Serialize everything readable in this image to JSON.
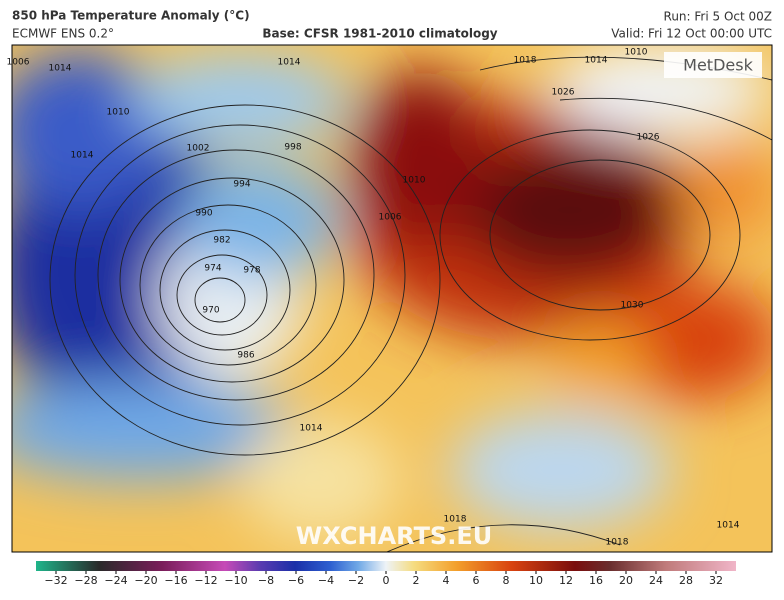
{
  "header": {
    "title": "850 hPa Temperature Anomaly (°C)",
    "model": "ECMWF ENS 0.2°",
    "base": "Base: CFSR 1981-2010 climatology",
    "run": "Run: Fri 5 Oct 00Z",
    "valid": "Valid: Fri 12 Oct 00:00 UTC"
  },
  "logo": "MetDesk",
  "watermark": "WXCHARTS.EU",
  "isobars": [
    1006,
    1014,
    1010,
    1014,
    1002,
    998,
    994,
    990,
    982,
    974,
    978,
    970,
    986,
    1014,
    1014,
    1018,
    1014,
    1010,
    1026,
    1026,
    1030,
    1006,
    1010,
    1018,
    1018,
    1014
  ],
  "colorbar": {
    "ticks": [
      {
        "value": -32,
        "label": "−32"
      },
      {
        "value": -28,
        "label": "−28"
      },
      {
        "value": -24,
        "label": "−24"
      },
      {
        "value": -20,
        "label": "−20"
      },
      {
        "value": -16,
        "label": "−16"
      },
      {
        "value": -12,
        "label": "−12"
      },
      {
        "value": -10,
        "label": "−10"
      },
      {
        "value": -8,
        "label": "−8"
      },
      {
        "value": -6,
        "label": "−6"
      },
      {
        "value": -4,
        "label": "−4"
      },
      {
        "value": -2,
        "label": "−2"
      },
      0,
      2,
      4,
      6,
      8,
      10,
      12,
      16,
      20,
      24,
      28,
      32
    ]
  }
}
